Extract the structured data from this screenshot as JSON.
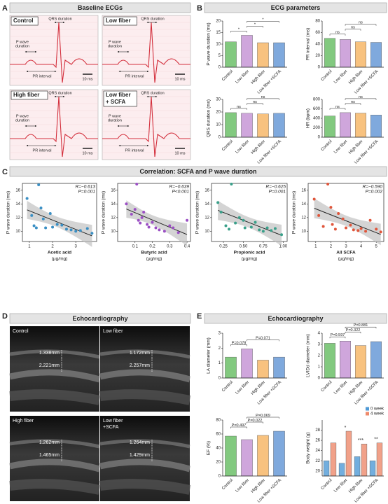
{
  "panel_labels": [
    "A",
    "B",
    "C",
    "D",
    "E"
  ],
  "section_titles": [
    "Baseline ECGs",
    "ECG parameters",
    "Correlation: SCFA and P wave duration",
    "Echocardiography",
    "Echocardiography"
  ],
  "ecg": {
    "panels": [
      {
        "label": [
          "Control"
        ],
        "qrs": "QRS duration",
        "p_wave": [
          "P wave",
          "duration"
        ],
        "pr": "PR interval",
        "scale": "10 ms"
      },
      {
        "label": [
          "Low fiber"
        ],
        "qrs": "QRS duration",
        "p_wave": [
          "P wave",
          "duration"
        ],
        "pr": "PR interval",
        "scale": "10 ms"
      },
      {
        "label": [
          "High fiber"
        ],
        "qrs": "QRS duration",
        "p_wave": [
          "P wave",
          "duration"
        ],
        "pr": "PR interval",
        "scale": "10 ms"
      },
      {
        "label": [
          "Low fiber",
          "+ SCFA"
        ],
        "qrs": "QRS duration",
        "p_wave": [
          "P wave",
          "duration"
        ],
        "pr": "PR interval",
        "scale": "10 ms"
      }
    ]
  },
  "echo": {
    "panels": [
      {
        "label": [
          "Control"
        ],
        "measurements": [
          "1.338mm",
          "2.221mm"
        ]
      },
      {
        "label": [
          "Low fiber"
        ],
        "measurements": [
          "1.172mm",
          "2.257mm"
        ]
      },
      {
        "label": [
          "High fiber"
        ],
        "measurements": [
          "1.262mm",
          "1.465mm"
        ]
      },
      {
        "label": [
          "Low fiber",
          "+SCFA"
        ],
        "measurements": [
          "1.264mm",
          "1.429mm"
        ]
      }
    ]
  },
  "chart_data": [
    {
      "type": "bar",
      "y_label": "P wave duration (ms)",
      "categories": [
        "Control",
        "Low fiber",
        "High fiber",
        "Low fiber +SCFA"
      ],
      "colors": [
        "#82c97f",
        "#cfa6dc",
        "#f8c27f",
        "#7fa9dd"
      ],
      "values": [
        11,
        13.8,
        10.6,
        10.6
      ],
      "ylim": [
        0,
        20
      ],
      "yticks": [
        0,
        5,
        10,
        15,
        20
      ],
      "annotations": [
        "*",
        "*",
        "*"
      ]
    },
    {
      "type": "bar",
      "y_label": "PR interval (ms)",
      "categories": [
        "Control",
        "Low fiber",
        "High fiber",
        "Low fiber +SCFA"
      ],
      "colors": [
        "#82c97f",
        "#cfa6dc",
        "#f8c27f",
        "#7fa9dd"
      ],
      "values": [
        50,
        48,
        44,
        43
      ],
      "ylim": [
        0,
        80
      ],
      "yticks": [
        0,
        20,
        40,
        60,
        80
      ],
      "annotations": [
        "ns",
        "ns",
        "ns"
      ]
    },
    {
      "type": "bar",
      "y_label": "QRS duration (ms)",
      "categories": [
        "Control",
        "Low fiber",
        "High fiber",
        "Low fiber +SCFA"
      ],
      "colors": [
        "#82c97f",
        "#cfa6dc",
        "#f8c27f",
        "#7fa9dd"
      ],
      "values": [
        19.5,
        19,
        18.5,
        19
      ],
      "ylim": [
        0,
        30
      ],
      "yticks": [
        0,
        10,
        20,
        30
      ],
      "annotations": [
        "ns",
        "ns",
        "ns"
      ]
    },
    {
      "type": "bar",
      "y_label": "HR (bpm)",
      "categories": [
        "Control",
        "Low fiber",
        "High fiber",
        "Low fiber +SCFA"
      ],
      "colors": [
        "#82c97f",
        "#cfa6dc",
        "#f8c27f",
        "#7fa9dd"
      ],
      "values": [
        450,
        520,
        510,
        470
      ],
      "ylim": [
        0,
        800
      ],
      "yticks": [
        0,
        200,
        400,
        600,
        800
      ],
      "annotations": [
        "ns",
        "ns",
        "ns"
      ]
    },
    {
      "type": "scatter",
      "y_label": "P wave duration (ms)",
      "x_label": "Acetic acid",
      "x_unit": "(μg/mg)",
      "color": "#3a8fc4",
      "x": [
        0.9,
        1.1,
        1.2,
        1.3,
        1.4,
        1.5,
        1.6,
        1.7,
        1.9,
        2.0,
        2.2,
        2.4,
        2.6,
        2.8,
        3.0,
        3.2,
        3.5,
        3.7
      ],
      "y": [
        14.8,
        12.3,
        10.8,
        10.5,
        16.8,
        13.4,
        11.8,
        10.5,
        12.6,
        10.6,
        11.0,
        10.9,
        10.3,
        10.2,
        10.0,
        10.1,
        10.4,
        9.7
      ],
      "xlim": [
        0.7,
        3.9
      ],
      "xticks": [
        1,
        2,
        3
      ],
      "ylim": [
        8.5,
        17
      ],
      "yticks": [
        10,
        12,
        14,
        16
      ],
      "annotations": [
        "R=−0.613",
        "P=0.001"
      ]
    },
    {
      "type": "scatter",
      "y_label": "P wave duration (ms)",
      "x_label": "Butyric acid",
      "x_unit": "(μg/mg)",
      "color": "#9b4fc4",
      "x": [
        0.05,
        0.08,
        0.1,
        0.11,
        0.12,
        0.13,
        0.14,
        0.15,
        0.17,
        0.18,
        0.2,
        0.22,
        0.24,
        0.27,
        0.3,
        0.32,
        0.35,
        0.4
      ],
      "y": [
        14.0,
        12.5,
        13.2,
        16.9,
        11.6,
        11.2,
        12.0,
        12.8,
        11.0,
        10.6,
        11.3,
        10.5,
        10.2,
        10.0,
        10.8,
        10.5,
        9.8,
        11.6
      ],
      "xlim": [
        0,
        0.42
      ],
      "xticks": [
        0.1,
        0.2,
        0.3,
        0.4
      ],
      "ylim": [
        8.5,
        17
      ],
      "yticks": [
        10,
        12,
        14,
        16
      ],
      "annotations": [
        "R=−0.639",
        "P<0.001"
      ]
    },
    {
      "type": "scatter",
      "y_label": "P wave duration (ms)",
      "x_label": "Propionic acid",
      "x_unit": "(μg/mg)",
      "color": "#3aa08a",
      "x": [
        0.18,
        0.22,
        0.28,
        0.32,
        0.35,
        0.4,
        0.45,
        0.5,
        0.52,
        0.6,
        0.65,
        0.7,
        0.75,
        0.8,
        0.85,
        0.9,
        0.98
      ],
      "y": [
        14.2,
        12.8,
        10.8,
        10.3,
        16.9,
        11.2,
        12.0,
        11.6,
        10.5,
        10.6,
        11.3,
        10.2,
        10.0,
        10.5,
        10.1,
        10.4,
        9.5
      ],
      "xlim": [
        0.1,
        1.05
      ],
      "xticks": [
        0.25,
        {
          "value": 0.5,
          "label": "0.50"
        },
        {
          "value": 0.75,
          "label": "0.75"
        },
        {
          "value": 1,
          "label": "1.00"
        }
      ],
      "ylim": [
        8.5,
        17
      ],
      "yticks": [
        10,
        12,
        14,
        16
      ],
      "annotations": [
        "R=−0.625",
        "P=0.001"
      ]
    },
    {
      "type": "scatter",
      "y_label": "P wave duration (ms)",
      "x_label": "All SCFA",
      "x_unit": "(μg/mg)",
      "color": "#e0553a",
      "x": [
        0.9,
        1.2,
        1.5,
        1.8,
        2.0,
        2.1,
        2.3,
        2.5,
        2.8,
        3.0,
        3.3,
        3.5,
        3.8,
        4.0,
        4.3,
        4.6,
        5.0,
        5.3
      ],
      "y": [
        14.7,
        12.3,
        10.7,
        16.9,
        13.5,
        11.0,
        10.3,
        12.6,
        11.8,
        10.5,
        10.9,
        10.2,
        10.1,
        10.4,
        10.0,
        11.6,
        10.3,
        9.9
      ],
      "xlim": [
        0.5,
        5.5
      ],
      "xticks": [
        1,
        2,
        3,
        4,
        5
      ],
      "ylim": [
        8.5,
        17
      ],
      "yticks": [
        10,
        12,
        14,
        16
      ],
      "annotations": [
        "R=−0.590",
        "P=0.002"
      ]
    },
    {
      "type": "bar",
      "y_label": "LA diameter (mm)",
      "categories": [
        "Control",
        "Low fiber",
        "High fiber",
        "Low fiber +SCFA"
      ],
      "colors": [
        "#82c97f",
        "#cfa6dc",
        "#f8c27f",
        "#7fa9dd"
      ],
      "values": [
        1.4,
        1.95,
        1.2,
        1.4
      ],
      "ylim": [
        0,
        3
      ],
      "yticks": [
        0,
        1,
        2,
        3
      ],
      "annotations": [
        "P=0.078",
        "P=0.071"
      ]
    },
    {
      "type": "bar",
      "y_label": "LVIDd diameter (mm)",
      "categories": [
        "Control",
        "Low fiber",
        "High fiber",
        "Low fiber +SCFA"
      ],
      "colors": [
        "#82c97f",
        "#cfa6dc",
        "#f8c27f",
        "#7fa9dd"
      ],
      "values": [
        3.1,
        3.3,
        2.9,
        3.25
      ],
      "ylim": [
        0,
        4
      ],
      "yticks": [
        0,
        1,
        2,
        3,
        4
      ],
      "annotations": [
        "P=0.597",
        "P=0.322",
        "P=0.881"
      ]
    },
    {
      "type": "bar",
      "y_label": "EF (%)",
      "categories": [
        "Control",
        "Low fiber",
        "High fiber",
        "Low fiber +SCFA"
      ],
      "colors": [
        "#82c97f",
        "#cfa6dc",
        "#f8c27f",
        "#7fa9dd"
      ],
      "values": [
        57,
        52,
        58,
        64
      ],
      "ylim": [
        0,
        80
      ],
      "yticks": [
        0,
        20,
        40,
        60,
        80
      ],
      "annotations": [
        "P=0.497",
        "P=0.022",
        "P=0.069"
      ]
    },
    {
      "type": "bar",
      "y_label": "Body weight (g)",
      "categories": [
        "Control",
        "Low fiber",
        "High fiber",
        "Low fiber +SCFA"
      ],
      "series": [
        {
          "name": "0 week",
          "color": "#4f9ad6",
          "values": [
            22,
            21.5,
            22.8,
            22
          ]
        },
        {
          "name": "4 week",
          "color": "#ee8a6b",
          "values": [
            25.5,
            27.8,
            25.3,
            25.5
          ]
        }
      ],
      "ylim": [
        19,
        30
      ],
      "yticks": [
        20,
        22,
        24,
        26,
        28
      ],
      "legend": "top-right",
      "annotations": [
        "*",
        "***",
        "**"
      ]
    }
  ]
}
